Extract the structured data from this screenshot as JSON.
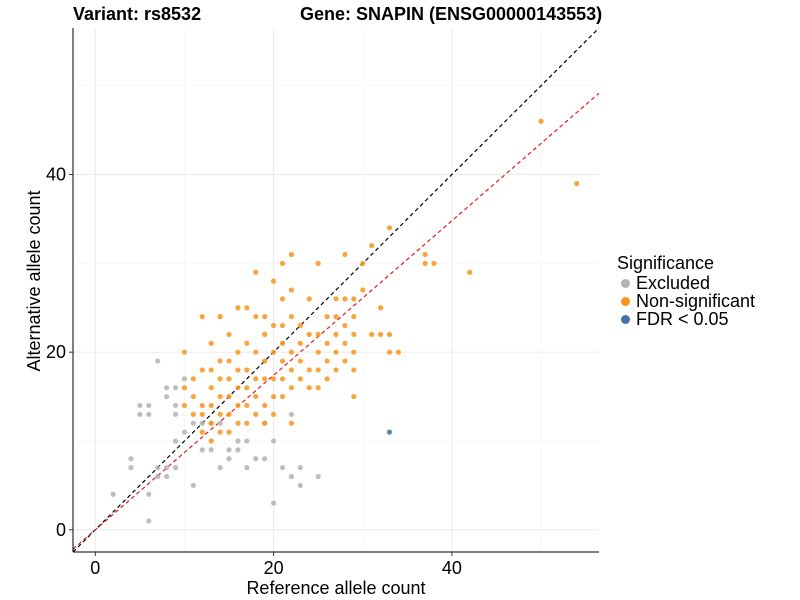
{
  "header": {
    "variant_label": "Variant: rs8532",
    "gene_label": "Gene: SNAPIN (ENSG00000143553)"
  },
  "legend": {
    "title": "Significance",
    "items": [
      {
        "label": "Excluded",
        "color": "#b3b3b3"
      },
      {
        "label": "Non-significant",
        "color": "#f7941d"
      },
      {
        "label": "FDR < 0.05",
        "color": "#4271a6"
      }
    ]
  },
  "chart_data": {
    "type": "scatter",
    "title": "",
    "xlabel": "Reference allele count",
    "ylabel": "Alternative allele count",
    "xlim": [
      -2.5,
      56.5
    ],
    "ylim": [
      -2.5,
      56.5
    ],
    "x_ticks": [
      0,
      20,
      40
    ],
    "y_ticks": [
      0,
      20,
      40
    ],
    "grid": true,
    "legend_position": "right",
    "reference_lines": [
      {
        "name": "identity",
        "slope": 1.0,
        "intercept": 0,
        "color": "#000000",
        "style": "dashed"
      },
      {
        "name": "fitted",
        "slope": 0.87,
        "intercept": 0,
        "color": "#e41a1c",
        "style": "dashed"
      }
    ],
    "series": [
      {
        "name": "Excluded",
        "color": "#b3b3b3",
        "points": [
          [
            2,
            4
          ],
          [
            4,
            7
          ],
          [
            4,
            8
          ],
          [
            5,
            13
          ],
          [
            5,
            14
          ],
          [
            6,
            1
          ],
          [
            6,
            4
          ],
          [
            6,
            13
          ],
          [
            6,
            14
          ],
          [
            7,
            6
          ],
          [
            7,
            7
          ],
          [
            7,
            19
          ],
          [
            8,
            6
          ],
          [
            8,
            7
          ],
          [
            8,
            15
          ],
          [
            8,
            16
          ],
          [
            9,
            7
          ],
          [
            9,
            10
          ],
          [
            9,
            13
          ],
          [
            9,
            14
          ],
          [
            9,
            16
          ],
          [
            10,
            11
          ],
          [
            10,
            17
          ],
          [
            11,
            5
          ],
          [
            11,
            12
          ],
          [
            12,
            9
          ],
          [
            12,
            12
          ],
          [
            13,
            9
          ],
          [
            13,
            12
          ],
          [
            14,
            7
          ],
          [
            14,
            12
          ],
          [
            15,
            8
          ],
          [
            15,
            9
          ],
          [
            16,
            9
          ],
          [
            16,
            10
          ],
          [
            17,
            7
          ],
          [
            17,
            10
          ],
          [
            18,
            8
          ],
          [
            19,
            12
          ],
          [
            19,
            8
          ],
          [
            20,
            3
          ],
          [
            20,
            10
          ],
          [
            21,
            7
          ],
          [
            22,
            6
          ],
          [
            22,
            13
          ],
          [
            23,
            5
          ],
          [
            23,
            7
          ],
          [
            25,
            6
          ]
        ]
      },
      {
        "name": "Non-significant",
        "color": "#f7941d",
        "points": [
          [
            10,
            20
          ],
          [
            10,
            16
          ],
          [
            10,
            14
          ],
          [
            11,
            17
          ],
          [
            11,
            15
          ],
          [
            11,
            13
          ],
          [
            12,
            24
          ],
          [
            12,
            18
          ],
          [
            12,
            14
          ],
          [
            12,
            13
          ],
          [
            12,
            11
          ],
          [
            13,
            21
          ],
          [
            13,
            18
          ],
          [
            13,
            16
          ],
          [
            13,
            14
          ],
          [
            13,
            12
          ],
          [
            13,
            10
          ],
          [
            14,
            24
          ],
          [
            14,
            19
          ],
          [
            14,
            17
          ],
          [
            14,
            15
          ],
          [
            14,
            13
          ],
          [
            14,
            11
          ],
          [
            15,
            22
          ],
          [
            15,
            19
          ],
          [
            15,
            17
          ],
          [
            15,
            15
          ],
          [
            15,
            13
          ],
          [
            15,
            11
          ],
          [
            16,
            25
          ],
          [
            16,
            20
          ],
          [
            16,
            18
          ],
          [
            16,
            16
          ],
          [
            16,
            14
          ],
          [
            16,
            12
          ],
          [
            17,
            25
          ],
          [
            17,
            21
          ],
          [
            17,
            18
          ],
          [
            17,
            16
          ],
          [
            17,
            14
          ],
          [
            17,
            12
          ],
          [
            18,
            29
          ],
          [
            18,
            24
          ],
          [
            18,
            20
          ],
          [
            18,
            17
          ],
          [
            18,
            15
          ],
          [
            18,
            13
          ],
          [
            19,
            24
          ],
          [
            19,
            22
          ],
          [
            19,
            19
          ],
          [
            19,
            17
          ],
          [
            19,
            14
          ],
          [
            19,
            12
          ],
          [
            20,
            28
          ],
          [
            20,
            23
          ],
          [
            20,
            20
          ],
          [
            20,
            17
          ],
          [
            20,
            15
          ],
          [
            20,
            13
          ],
          [
            21,
            30
          ],
          [
            21,
            26
          ],
          [
            21,
            23
          ],
          [
            21,
            21
          ],
          [
            21,
            19
          ],
          [
            21,
            17
          ],
          [
            21,
            15
          ],
          [
            22,
            31
          ],
          [
            22,
            27
          ],
          [
            22,
            24
          ],
          [
            22,
            20
          ],
          [
            22,
            18
          ],
          [
            22,
            16
          ],
          [
            22,
            12
          ],
          [
            23,
            23
          ],
          [
            23,
            21
          ],
          [
            23,
            19
          ],
          [
            23,
            17
          ],
          [
            24,
            26
          ],
          [
            24,
            22
          ],
          [
            24,
            18
          ],
          [
            24,
            16
          ],
          [
            25,
            30
          ],
          [
            25,
            22
          ],
          [
            25,
            20
          ],
          [
            25,
            18
          ],
          [
            25,
            16
          ],
          [
            26,
            24
          ],
          [
            26,
            21
          ],
          [
            26,
            19
          ],
          [
            26,
            17
          ],
          [
            27,
            26
          ],
          [
            27,
            24
          ],
          [
            27,
            22
          ],
          [
            27,
            20
          ],
          [
            27,
            18
          ],
          [
            28,
            31
          ],
          [
            28,
            26
          ],
          [
            28,
            23
          ],
          [
            28,
            21
          ],
          [
            28,
            19
          ],
          [
            29,
            26
          ],
          [
            29,
            24
          ],
          [
            29,
            22
          ],
          [
            29,
            20
          ],
          [
            29,
            18
          ],
          [
            29,
            15
          ],
          [
            30,
            30
          ],
          [
            30,
            27
          ],
          [
            31,
            32
          ],
          [
            31,
            22
          ],
          [
            32,
            25
          ],
          [
            32,
            22
          ],
          [
            33,
            34
          ],
          [
            33,
            22
          ],
          [
            33,
            20
          ],
          [
            34,
            20
          ],
          [
            37,
            31
          ],
          [
            37,
            30
          ],
          [
            38,
            30
          ],
          [
            42,
            29
          ],
          [
            50,
            46
          ],
          [
            54,
            39
          ]
        ]
      },
      {
        "name": "FDR < 0.05",
        "color": "#4271a6",
        "points": [
          [
            33,
            11
          ]
        ]
      }
    ]
  }
}
